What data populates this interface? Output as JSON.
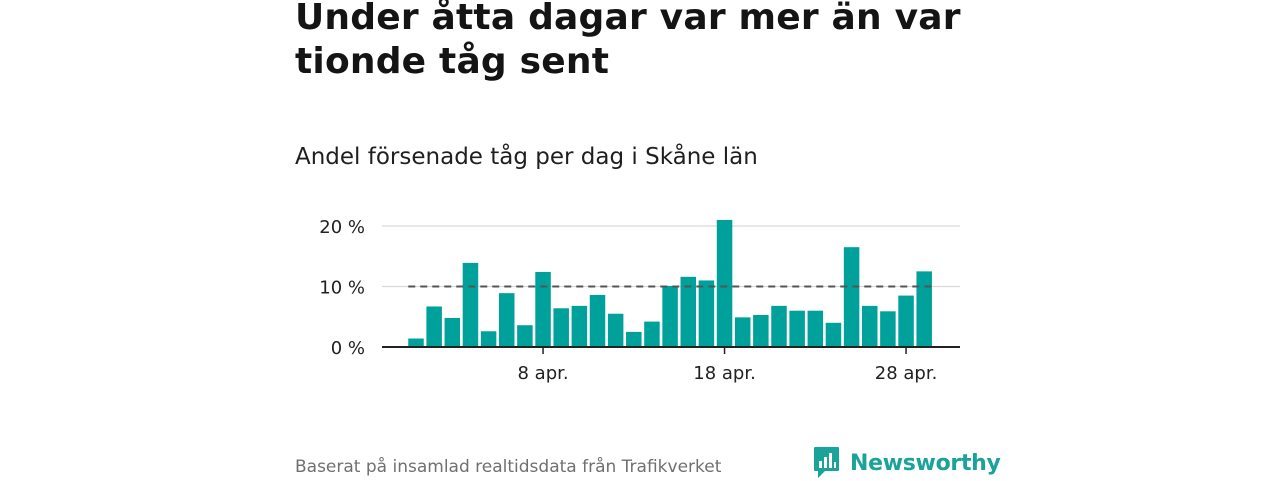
{
  "title": "Under åtta dagar var mer än var tionde tåg sent",
  "subtitle": "Andel försenade tåg per dag i Skåne län",
  "source": "Baserat på insamlad realtidsdata från Trafikverket",
  "brand": {
    "name": "Newsworthy",
    "logo_icon": "newsworthy-bar-chart-icon",
    "color": "#1aa39a"
  },
  "colors": {
    "bar": "#00a19a",
    "reference_line": "#555555",
    "gridline": "#d9d9d9",
    "axis": "#222222"
  },
  "chart_data": {
    "type": "bar",
    "title": "Andel försenade tåg per dag i Skåne län",
    "xlabel": "",
    "ylabel": "",
    "y_unit": "%",
    "ylim": [
      0,
      20
    ],
    "y_ticks": [
      0,
      10,
      20
    ],
    "y_tick_labels": [
      "0 %",
      "10 %",
      "20 %"
    ],
    "x_tick_labels": [
      {
        "day": 8,
        "label": "8 apr."
      },
      {
        "day": 18,
        "label": "18 apr."
      },
      {
        "day": 28,
        "label": "28 apr."
      }
    ],
    "grid": true,
    "reference_line": {
      "value": 10,
      "style": "dashed"
    },
    "days": [
      1,
      2,
      3,
      4,
      5,
      6,
      7,
      8,
      9,
      10,
      11,
      12,
      13,
      14,
      15,
      16,
      17,
      18,
      19,
      20,
      21,
      22,
      23,
      24,
      25,
      26,
      27,
      28,
      29,
      30
    ],
    "values": [
      1.4,
      6.7,
      4.8,
      13.9,
      2.6,
      8.9,
      3.6,
      12.4,
      6.4,
      6.8,
      8.6,
      5.5,
      2.5,
      4.2,
      10.1,
      11.6,
      11.0,
      21.0,
      4.9,
      5.3,
      6.8,
      6.0,
      6.0,
      4.0,
      16.5,
      6.8,
      5.9,
      8.5,
      12.5,
      null
    ]
  }
}
